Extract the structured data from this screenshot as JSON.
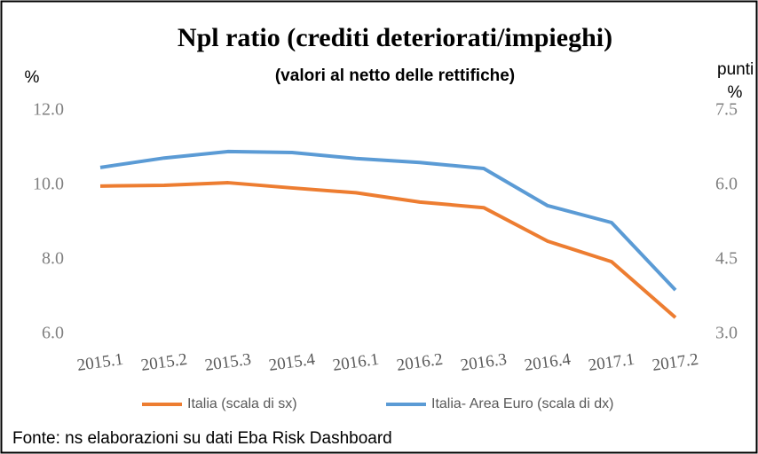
{
  "chart_data": {
    "type": "line",
    "title": "Npl ratio (crediti deteriorati/impieghi)",
    "subtitle": "(valori al netto delle rettifiche)",
    "y_label": "%",
    "y2_label": "punti %",
    "source": "Fonte: ns elaborazioni su dati Eba Risk Dashboard",
    "categories": [
      "2015.1",
      "2015.2",
      "2015.3",
      "2015.4",
      "2016.1",
      "2016.2",
      "2016.3",
      "2016.4",
      "2017.1",
      "2017.2"
    ],
    "series": [
      {
        "name": "Italia (scala di sx)",
        "color": "#ED7D31",
        "values": [
          9.98,
          10.0,
          10.07,
          9.93,
          9.8,
          9.55,
          9.4,
          8.5,
          7.95,
          6.45
        ]
      },
      {
        "name": "Italia- Area Euro (scala di dx)",
        "color": "#5B9BD5",
        "axis": "y2",
        "values": [
          6.36,
          6.55,
          6.68,
          6.66,
          6.54,
          6.46,
          6.34,
          5.59,
          5.25,
          3.89
        ]
      }
    ],
    "ylim": [
      6,
      12
    ],
    "yticks": [
      {
        "value": 6,
        "label": "6.0"
      },
      {
        "value": 8,
        "label": "8.0"
      },
      {
        "value": 10,
        "label": "10.0"
      },
      {
        "value": 12,
        "label": "12.0"
      }
    ],
    "y2lim": [
      3,
      7.5
    ],
    "y2ticks": [
      {
        "value": 3,
        "label": "3.0"
      },
      {
        "value": 4.5,
        "label": "4.5"
      },
      {
        "value": 6,
        "label": "6.0"
      },
      {
        "value": 7.5,
        "label": "7.5"
      }
    ],
    "grid": false,
    "legend": "bottom"
  }
}
